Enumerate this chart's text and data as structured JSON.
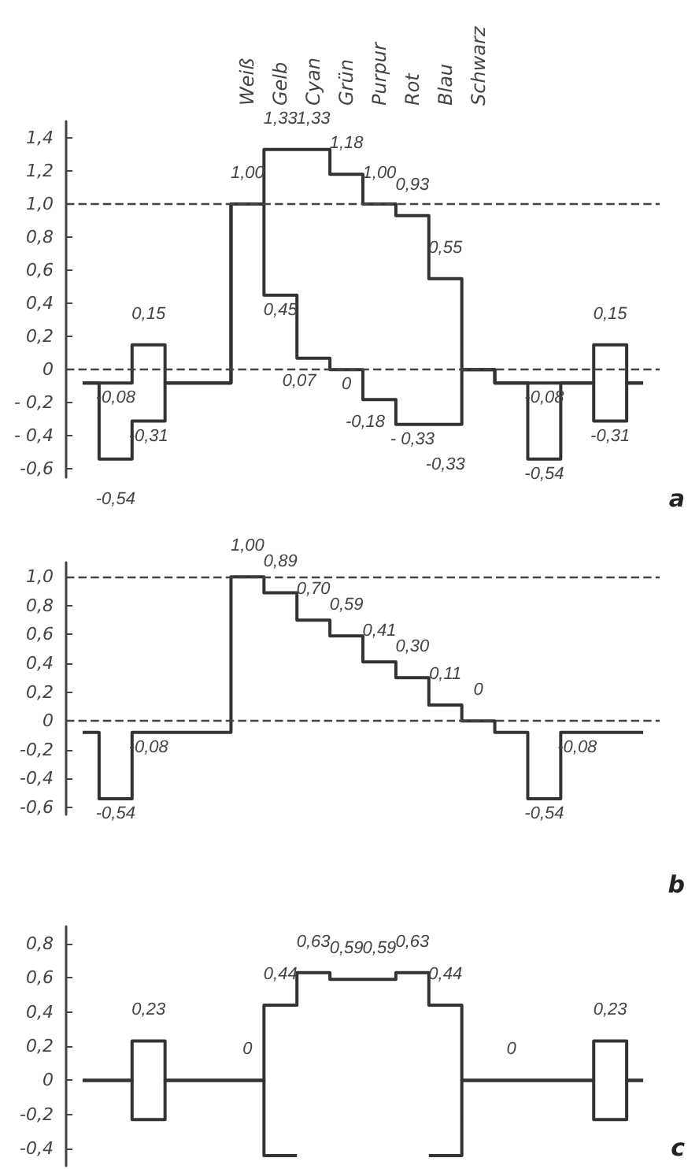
{
  "chart_data": [
    {
      "type": "step",
      "categories": [
        null,
        null,
        null,
        null,
        null,
        "Weiß",
        "Gelb",
        "Cyan",
        "Grün",
        "Purpur",
        "Rot",
        "Blau",
        "Schwarz",
        null,
        null,
        null,
        null,
        null
      ],
      "series": [
        {
          "color": "#333333",
          "values": [
            -0.08,
            -0.08,
            0.15,
            -0.08,
            -0.08,
            1.0,
            1.33,
            1.33,
            1.18,
            1.0,
            0.93,
            0.55,
            0,
            -0.08,
            -0.08,
            -0.08,
            0.15,
            -0.08
          ],
          "value_labels": [
            null,
            "-0,08",
            "0,15",
            null,
            null,
            "1,00",
            "1,33",
            "1,33",
            "1,18",
            "1,00",
            "0,93",
            "0,55",
            null,
            null,
            "-0,08",
            null,
            "0,15",
            null
          ]
        },
        {
          "color": "#333333",
          "values": [
            -0.08,
            -0.54,
            -0.31,
            -0.08,
            -0.08,
            1.0,
            0.45,
            0.07,
            0,
            -0.18,
            -0.33,
            -0.33,
            0,
            -0.08,
            -0.54,
            -0.08,
            -0.31,
            -0.08
          ],
          "value_labels": [
            null,
            "-0,54",
            "-0,31",
            null,
            null,
            null,
            "0,45",
            "0,07",
            "0",
            "-0,18",
            "- 0,33",
            "-0,33",
            null,
            null,
            "-0,54",
            null,
            "-0,31",
            null
          ]
        }
      ],
      "ylim": [
        -0.65,
        1.5
      ],
      "yticks": [
        {
          "value": -0.6,
          "label": "-0,6"
        },
        {
          "value": -0.4,
          "label": "- 0,4"
        },
        {
          "value": -0.2,
          "label": "- 0,2"
        },
        {
          "value": 0,
          "label": "0"
        },
        {
          "value": 0.2,
          "label": "0,2"
        },
        {
          "value": 0.4,
          "label": "0,4"
        },
        {
          "value": 0.6,
          "label": "0,6"
        },
        {
          "value": 0.8,
          "label": "0,8"
        },
        {
          "value": 1.0,
          "label": "1,0"
        },
        {
          "value": 1.2,
          "label": "1,2"
        },
        {
          "value": 1.4,
          "label": "1,4"
        }
      ],
      "ref_lines": [
        {
          "axis": "y",
          "value": 1.0,
          "line_style": "dashed"
        },
        {
          "axis": "y",
          "value": 0,
          "line_style": "dashed"
        }
      ],
      "marker": "none",
      "line_style": "solid",
      "annotations": [
        "a"
      ]
    },
    {
      "type": "step",
      "categories": [
        null,
        null,
        null,
        null,
        null,
        null,
        null,
        null,
        null,
        null,
        null,
        null,
        null,
        null,
        null,
        null,
        null,
        null
      ],
      "series": [
        {
          "color": "#333333",
          "values": [
            -0.08,
            -0.54,
            -0.08,
            -0.08,
            -0.08,
            1.0,
            0.89,
            0.7,
            0.59,
            0.41,
            0.3,
            0.11,
            0,
            -0.08,
            -0.54,
            -0.08,
            -0.08,
            -0.08
          ],
          "value_labels": [
            null,
            "-0,54",
            "-0,08",
            null,
            null,
            "1,00",
            "0,89",
            "0,70",
            "0,59",
            "0,41",
            "0,30",
            "0,11",
            "0",
            null,
            "-0,54",
            "-0,08",
            null,
            null
          ]
        }
      ],
      "ylim": [
        -0.65,
        1.1
      ],
      "yticks": [
        {
          "value": -0.6,
          "label": "-0,6"
        },
        {
          "value": -0.4,
          "label": "-0,4"
        },
        {
          "value": -0.2,
          "label": "-0,2"
        },
        {
          "value": 0,
          "label": "0"
        },
        {
          "value": 0.2,
          "label": "0,2"
        },
        {
          "value": 0.4,
          "label": "0,4"
        },
        {
          "value": 0.6,
          "label": "0,6"
        },
        {
          "value": 0.8,
          "label": "0,8"
        },
        {
          "value": 1.0,
          "label": "1,0"
        }
      ],
      "ref_lines": [
        {
          "axis": "y",
          "value": 1.0,
          "line_style": "dashed"
        },
        {
          "axis": "y",
          "value": 0,
          "line_style": "dashed"
        }
      ],
      "marker": "none",
      "line_style": "solid",
      "annotations": [
        "b"
      ]
    },
    {
      "type": "step",
      "categories": [
        null,
        null,
        null,
        null,
        null,
        null,
        null,
        null,
        null,
        null,
        null,
        null,
        null,
        null,
        null,
        null,
        null,
        null
      ],
      "series": [
        {
          "color": "#333333",
          "values": [
            0,
            0,
            0.23,
            0,
            0,
            0,
            0.44,
            0.63,
            0.59,
            0.59,
            0.63,
            0.44,
            0,
            0,
            0,
            0,
            0.23,
            0
          ],
          "value_labels": [
            null,
            null,
            "0,23",
            null,
            null,
            "0",
            "0,44",
            "0,63",
            "0,59",
            "0,59",
            "0,63",
            "0,44",
            null,
            "0",
            null,
            null,
            "0,23",
            null
          ]
        },
        {
          "color": "#333333",
          "values": [
            0,
            0,
            -0.23,
            0,
            0,
            0,
            -0.44,
            null,
            null,
            null,
            null,
            -0.44,
            0,
            0,
            0,
            0,
            -0.23,
            0
          ]
        }
      ],
      "ylim": [
        -0.5,
        0.9
      ],
      "yticks": [
        {
          "value": -0.4,
          "label": "-0,4"
        },
        {
          "value": -0.2,
          "label": "-0,2"
        },
        {
          "value": 0,
          "label": "0"
        },
        {
          "value": 0.2,
          "label": "0,2"
        },
        {
          "value": 0.4,
          "label": "0,4"
        },
        {
          "value": 0.6,
          "label": "0,6"
        },
        {
          "value": 0.8,
          "label": "0,8"
        }
      ],
      "marker": "none",
      "line_style": "solid",
      "annotations": [
        "c"
      ]
    }
  ]
}
